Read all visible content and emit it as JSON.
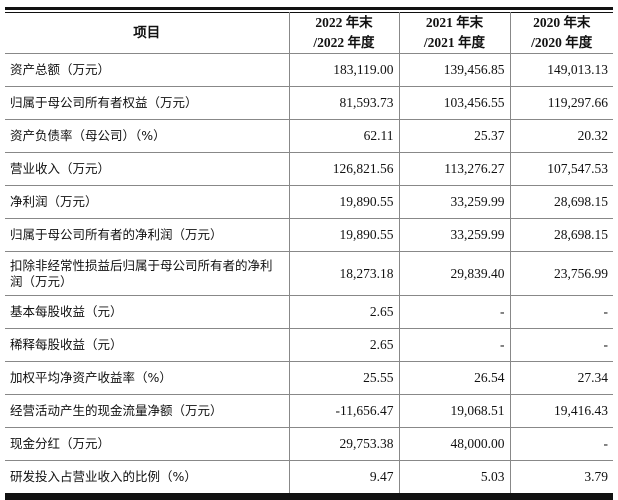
{
  "table": {
    "headers": [
      {
        "line1": "项目",
        "line2": ""
      },
      {
        "line1": "2022 年末",
        "line2": "/2022 年度"
      },
      {
        "line1": "2021 年末",
        "line2": "/2021 年度"
      },
      {
        "line1": "2020 年末",
        "line2": "/2020 年度"
      }
    ],
    "rows": [
      {
        "label": "资产总额（万元）",
        "values": [
          "183,119.00",
          "139,456.85",
          "149,013.13"
        ]
      },
      {
        "label": "归属于母公司所有者权益（万元）",
        "values": [
          "81,593.73",
          "103,456.55",
          "119,297.66"
        ]
      },
      {
        "label": "资产负债率（母公司）（%）",
        "values": [
          "62.11",
          "25.37",
          "20.32"
        ]
      },
      {
        "label": "营业收入（万元）",
        "values": [
          "126,821.56",
          "113,276.27",
          "107,547.53"
        ]
      },
      {
        "label": "净利润（万元）",
        "values": [
          "19,890.55",
          "33,259.99",
          "28,698.15"
        ]
      },
      {
        "label": "归属于母公司所有者的净利润（万元）",
        "values": [
          "19,890.55",
          "33,259.99",
          "28,698.15"
        ]
      },
      {
        "label": "扣除非经常性损益后归属于母公司所有者的净利润（万元）",
        "values": [
          "18,273.18",
          "29,839.40",
          "23,756.99"
        ]
      },
      {
        "label": "基本每股收益（元）",
        "values": [
          "2.65",
          "-",
          "-"
        ]
      },
      {
        "label": "稀释每股收益（元）",
        "values": [
          "2.65",
          "-",
          "-"
        ]
      },
      {
        "label": "加权平均净资产收益率（%）",
        "values": [
          "25.55",
          "26.54",
          "27.34"
        ]
      },
      {
        "label": "经营活动产生的现金流量净额（万元）",
        "values": [
          "-11,656.47",
          "19,068.51",
          "19,416.43"
        ]
      },
      {
        "label": "现金分红（万元）",
        "values": [
          "29,753.38",
          "48,000.00",
          "-"
        ]
      },
      {
        "label": "研发投入占营业收入的比例（%）",
        "values": [
          "9.47",
          "5.03",
          "3.79"
        ]
      }
    ]
  }
}
